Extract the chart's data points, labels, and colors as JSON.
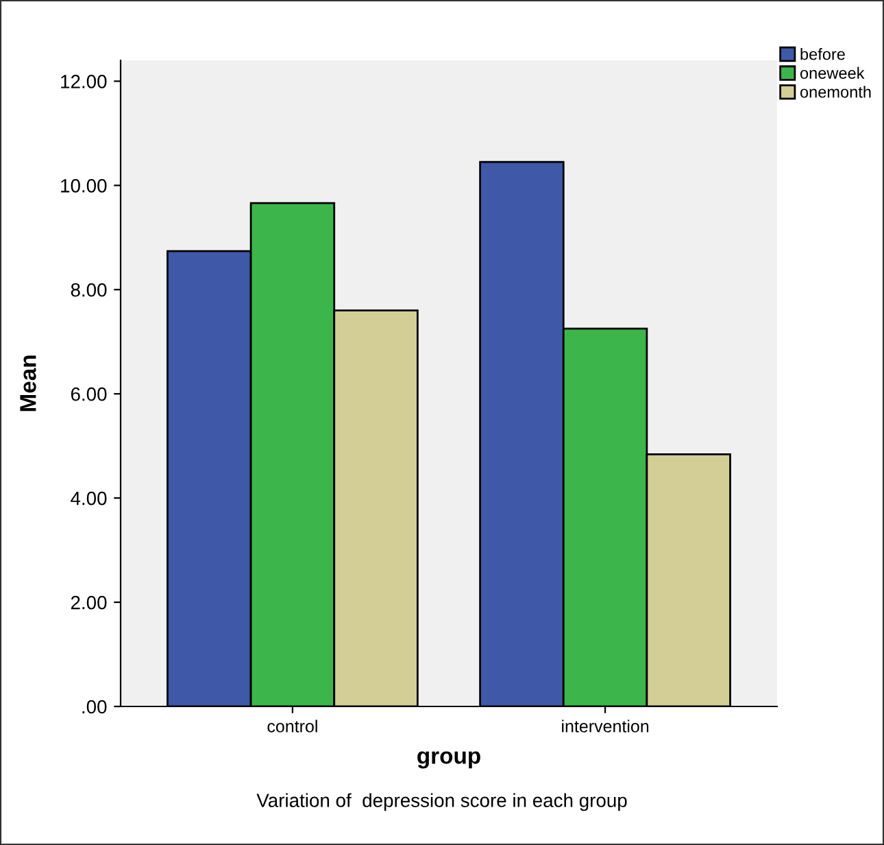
{
  "chart_data": {
    "type": "bar",
    "xlabel": "group",
    "ylabel": "Mean",
    "categories": [
      "control",
      "intervention"
    ],
    "series": [
      {
        "name": "before",
        "color": "#3f59a8",
        "values": [
          8.74,
          10.45
        ]
      },
      {
        "name": "oneweek",
        "color": "#3cb64a",
        "values": [
          9.66,
          7.25
        ]
      },
      {
        "name": "onemonth",
        "color": "#d3ce96",
        "values": [
          7.6,
          4.84
        ]
      }
    ],
    "ylim": [
      0,
      12.4
    ],
    "yticks": [
      {
        "value": 0,
        "label": ".00"
      },
      {
        "value": 2,
        "label": "2.00"
      },
      {
        "value": 4,
        "label": "4.00"
      },
      {
        "value": 6,
        "label": "6.00"
      },
      {
        "value": 8,
        "label": "8.00"
      },
      {
        "value": 10,
        "label": "10.00"
      },
      {
        "value": 12,
        "label": "12.00"
      }
    ],
    "grid": false,
    "legend": "top right",
    "annotations": [
      "Variation of  depression score in each group"
    ]
  }
}
